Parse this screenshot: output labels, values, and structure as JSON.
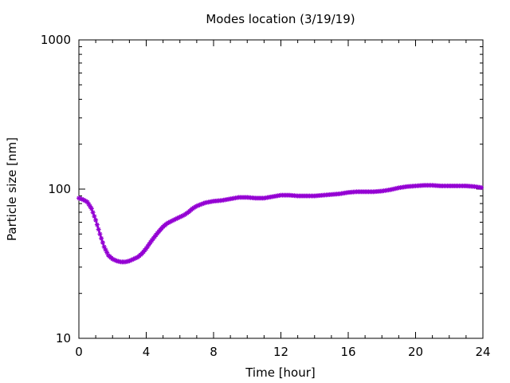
{
  "chart_data": {
    "type": "line",
    "title": "Modes location (3/19/19)",
    "xlabel": "Time [hour]",
    "ylabel": "Particle size [nm]",
    "xlim": [
      0,
      24
    ],
    "ylim": [
      10,
      1000
    ],
    "yscale": "log",
    "grid": false,
    "legend": "none",
    "x_ticks": [
      "0",
      "4",
      "8",
      "12",
      "16",
      "20",
      "24"
    ],
    "y_ticks": [
      "10",
      "100",
      "1000"
    ],
    "series": [
      {
        "color": "#9400d3",
        "marker": "star",
        "points": [
          [
            0,
            87
          ],
          [
            0.25,
            85
          ],
          [
            0.5,
            82
          ],
          [
            0.75,
            74
          ],
          [
            1.0,
            62
          ],
          [
            1.25,
            50
          ],
          [
            1.5,
            41
          ],
          [
            1.75,
            36
          ],
          [
            2.0,
            34
          ],
          [
            2.25,
            33
          ],
          [
            2.5,
            32.5
          ],
          [
            2.75,
            32.5
          ],
          [
            3.0,
            33
          ],
          [
            3.25,
            34
          ],
          [
            3.5,
            35
          ],
          [
            3.75,
            37
          ],
          [
            4.0,
            40
          ],
          [
            4.25,
            44
          ],
          [
            4.5,
            48
          ],
          [
            4.75,
            52
          ],
          [
            5.0,
            56
          ],
          [
            5.25,
            59
          ],
          [
            5.5,
            61
          ],
          [
            5.75,
            63
          ],
          [
            6.0,
            65
          ],
          [
            6.25,
            67
          ],
          [
            6.5,
            70
          ],
          [
            6.75,
            74
          ],
          [
            7.0,
            77
          ],
          [
            7.25,
            79
          ],
          [
            7.5,
            81
          ],
          [
            8.0,
            83
          ],
          [
            8.5,
            84
          ],
          [
            9.0,
            86
          ],
          [
            9.5,
            88
          ],
          [
            10.0,
            88
          ],
          [
            10.5,
            87
          ],
          [
            11.0,
            87
          ],
          [
            11.5,
            89
          ],
          [
            12.0,
            91
          ],
          [
            12.5,
            91
          ],
          [
            13.0,
            90
          ],
          [
            13.5,
            90
          ],
          [
            14.0,
            90
          ],
          [
            14.5,
            91
          ],
          [
            15.0,
            92
          ],
          [
            15.5,
            93
          ],
          [
            16.0,
            95
          ],
          [
            16.5,
            96
          ],
          [
            17.0,
            96
          ],
          [
            17.5,
            96
          ],
          [
            18.0,
            97
          ],
          [
            18.5,
            99
          ],
          [
            19.0,
            102
          ],
          [
            19.5,
            104
          ],
          [
            20.0,
            105
          ],
          [
            20.5,
            106
          ],
          [
            21.0,
            106
          ],
          [
            21.5,
            105
          ],
          [
            22.0,
            105
          ],
          [
            22.5,
            105
          ],
          [
            23.0,
            105
          ],
          [
            23.5,
            104
          ],
          [
            24.0,
            102
          ]
        ]
      }
    ]
  }
}
